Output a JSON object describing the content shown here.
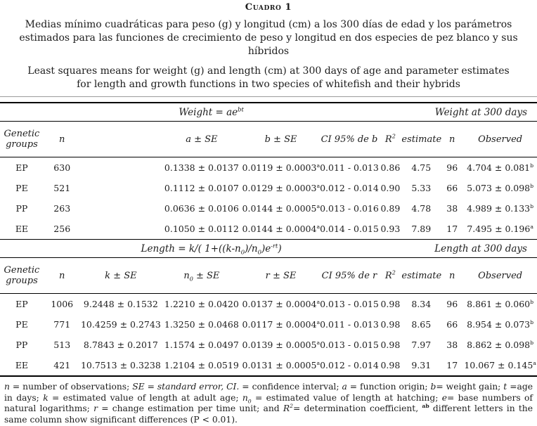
{
  "header": {
    "caption": "Cuadro 1",
    "title_es": "Medias mínimo cuadráticas para peso (g) y longitud (cm) a los 300 días de edad y los parámetros estimados para las funciones de crecimiento de peso y longitud en dos especies de pez blanco y sus híbridos",
    "title_en": "Least squares means for weight (g) and length (cm) at 300 days of age and parameter estimates for length and growth functions in two species of whitefish and their hybrids"
  },
  "table": {
    "sections": [
      {
        "formula": "Weight = ae^{bt}",
        "right_label": "Weight at 300 days",
        "columns": [
          "Genetic groups",
          "n",
          "",
          "a ± SE",
          "b ± SE",
          "CI 95% de b",
          "R^{2}",
          "estimate",
          "n",
          "Observed"
        ],
        "rows": [
          [
            "EP",
            "630",
            "",
            "0.1338 ± 0.0137",
            "0.0119 ± 0.0003^{a}",
            "0.011 - 0.013",
            "0.86",
            "4.75",
            "96",
            "4.704 ± 0.081^{b}"
          ],
          [
            "PE",
            "521",
            "",
            "0.1112 ± 0.0107",
            "0.0129 ± 0.0003^{a}",
            "0.012 - 0.014",
            "0.90",
            "5.33",
            "66",
            "5.073 ± 0.098^{b}"
          ],
          [
            "PP",
            "263",
            "",
            "0.0636 ± 0.0106",
            "0.0144 ± 0.0005^{a}",
            "0.013 - 0.016",
            "0.89",
            "4.78",
            "38",
            "4.989 ± 0.133^{b}"
          ],
          [
            "EE",
            "256",
            "",
            "0.1050 ± 0.0112",
            "0.0144 ± 0.0004^{a}",
            "0.014 - 0.015",
            "0.93",
            "7.89",
            "17",
            "7.495 ± 0.196^{a}"
          ]
        ]
      },
      {
        "formula": "Length = k/( 1+((k-n_{0})/n_{0})e^{-rt})",
        "right_label": "Length at  300 days",
        "columns": [
          "Genetic groups",
          "n",
          "k ± SE",
          "n_{0} ± SE",
          "r ± SE",
          "CI 95% de r",
          "R^{2}",
          "estimate",
          "n",
          "Observed"
        ],
        "rows": [
          [
            "EP",
            "1006",
            "9.2448 ± 0.1532",
            "1.2210 ± 0.0420",
            "0.0137 ± 0.0004^{a}",
            "0.013 - 0.015",
            "0.98",
            "8.34",
            "96",
            "8.861 ± 0.060^{b}"
          ],
          [
            "PE",
            "771",
            "10.4259 ± 0.2743",
            "1.3250 ± 0.0468",
            "0.0117 ± 0.0004^{a}",
            "0.011 - 0.013",
            "0.98",
            "8.65",
            "66",
            "8.954 ± 0.073^{b}"
          ],
          [
            "PP",
            "513",
            "8.7843 ± 0.2017",
            "1.1574 ± 0.0497",
            "0.0139 ± 0.0005^{a}",
            "0.013 - 0.015",
            "0.98",
            "7.97",
            "38",
            "8.862 ± 0.098^{b}"
          ],
          [
            "EE",
            "421",
            "10.7513 ± 0.3238",
            "1.2104 ± 0.0519",
            "0.0131 ± 0.0005^{a}",
            "0.012 - 0.014",
            "0.98",
            "9.31",
            "17",
            "10.067 ± 0.145^{a}"
          ]
        ]
      }
    ]
  },
  "footnote": {
    "segments": [
      {
        "t": "n",
        "i": true
      },
      {
        "t": " = number of observations; "
      },
      {
        "t": "SE",
        "i": true
      },
      {
        "t": " = "
      },
      {
        "t": "standard error,",
        "i": true
      },
      {
        "t": " "
      },
      {
        "t": "CI.",
        "i": true
      },
      {
        "t": " = confidence interval; "
      },
      {
        "t": "a",
        "i": true
      },
      {
        "t": " = function origin; "
      },
      {
        "t": "b",
        "i": true
      },
      {
        "t": "= weight gain; "
      },
      {
        "t": "t",
        "i": true
      },
      {
        "t": " =age in days; "
      },
      {
        "t": "k",
        "i": true
      },
      {
        "t": " = estimated value of length at adult age; "
      },
      {
        "t": "n",
        "i": true
      },
      {
        "t": "0",
        "i": true,
        "sub": true
      },
      {
        "t": " = estimated value of length at hatching; "
      },
      {
        "t": "e",
        "i": true
      },
      {
        "t": "= base numbers of natural logarithms; "
      },
      {
        "t": "r",
        "i": true
      },
      {
        "t": " = change estimation per time unit; and "
      },
      {
        "t": "R",
        "i": true
      },
      {
        "t": "2",
        "i": true,
        "sup": true
      },
      {
        "t": "= determination coefficient, "
      },
      {
        "t": "ab",
        "sup": true,
        "b": true
      },
      {
        "t": " different letters in the same column show significant differences (P < 0.01)."
      }
    ]
  }
}
